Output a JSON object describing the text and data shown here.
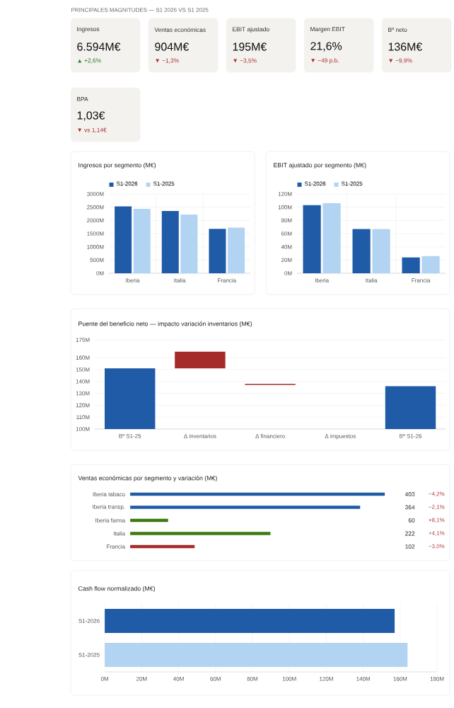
{
  "chart_data": [
    {
      "type": "other",
      "title": "PRINCIPALES MAGNITUDES — S1 2026 VS S1 2025",
      "annotations": [
        "Ingresos",
        "6.594M€",
        "▲ +2,6%",
        "Ventas económicas",
        "904M€",
        "▼ −1,3%",
        "EBIT ajustado",
        "195M€",
        "▼ −3,5%",
        "Margen EBIT",
        "21,6%",
        "▼ −49 p.b.",
        "Bº neto",
        "136M€",
        "▼ −9,9%",
        "BPA",
        "1,03€",
        "▼ vs 1,14€"
      ],
      "colors": [
        "#2e7d32",
        "#b03030",
        "#b03030",
        "#b03030",
        "#b03030",
        "#b03030"
      ]
    },
    {
      "type": "bar",
      "title": "Ingresos por segmento (M€)",
      "categories": [
        "Iberia",
        "Italia",
        "Francia"
      ],
      "series": [
        {
          "name": "S1-2026",
          "color": "#1f5ba6",
          "values": [
            2530,
            2360,
            1680
          ]
        },
        {
          "name": "S1-2025",
          "color": "#b3d3f2",
          "values": [
            2440,
            2220,
            1730
          ]
        }
      ],
      "ylim": [
        0,
        3000
      ],
      "yticks": [
        {
          "value": 0,
          "label": "0M"
        },
        {
          "value": 500,
          "label": "500M"
        },
        {
          "value": 1000,
          "label": "1000M"
        },
        {
          "value": 1500,
          "label": "1500M"
        },
        {
          "value": 2000,
          "label": "2000M"
        },
        {
          "value": 2500,
          "label": "2500M"
        },
        {
          "value": 3000,
          "label": "3000M"
        }
      ],
      "grid": true,
      "legend": "top left"
    },
    {
      "type": "bar",
      "title": "EBIT ajustado por segmento (M€)",
      "categories": [
        "Iberia",
        "Italia",
        "Francia"
      ],
      "series": [
        {
          "name": "S1-2026",
          "color": "#1f5ba6",
          "values": [
            103,
            67,
            24
          ]
        },
        {
          "name": "S1-2025",
          "color": "#b3d3f2",
          "values": [
            106,
            67,
            26
          ]
        }
      ],
      "ylim": [
        0,
        120
      ],
      "yticks": [
        {
          "value": 0,
          "label": "0M"
        },
        {
          "value": 20,
          "label": "20M"
        },
        {
          "value": 40,
          "label": "40M"
        },
        {
          "value": 60,
          "label": "60M"
        },
        {
          "value": 80,
          "label": "80M"
        },
        {
          "value": 100,
          "label": "100M"
        },
        {
          "value": 120,
          "label": "120M"
        }
      ],
      "grid": true,
      "legend": "top left"
    },
    {
      "type": "bar",
      "title": "Puente del beneficio neto — impacto variación inventarios (M€)",
      "categories": [
        "Bº S1-25",
        "Δ inventarios",
        "Δ financiero",
        "Δ impuestos",
        "Bº S1-26"
      ],
      "values": [
        151,
        14,
        1,
        null,
        136
      ],
      "base": [
        null,
        151,
        137,
        null,
        null
      ],
      "colors": [
        "#1f5ba6",
        "#a52a2a",
        "#a52a2a",
        "#a52a2a",
        "#1f5ba6"
      ],
      "ylim": [
        100,
        175
      ],
      "yticks": [
        {
          "value": 100,
          "label": "100M"
        },
        {
          "value": 110,
          "label": "110M"
        },
        {
          "value": 120,
          "label": "120M"
        },
        {
          "value": 130,
          "label": "130M"
        },
        {
          "value": 140,
          "label": "140M"
        },
        {
          "value": 150,
          "label": "150M"
        },
        {
          "value": 160,
          "label": "160M"
        },
        {
          "value": 175,
          "label": "175M"
        }
      ],
      "grid": "y"
    },
    {
      "type": "bar",
      "orientation": "horizontal",
      "title": "Ventas económicas por segmento y variación (M€)",
      "categories": [
        "Iberia tabaco",
        "Iberia transp.",
        "Iberia farma",
        "Italia",
        "Francia"
      ],
      "values": [
        403,
        364,
        60,
        222,
        102
      ],
      "colors": [
        "#1f5ba6",
        "#1f5ba6",
        "#3d7a10",
        "#3d7a10",
        "#a52a2a"
      ],
      "data_labels": true,
      "tick_labels": "y",
      "annotations": [
        "−4,2%",
        "−2,1%",
        "+8,1%",
        "+4,1%",
        "−3,0%"
      ]
    },
    {
      "type": "bar",
      "orientation": "horizontal",
      "title": "Cash flow normalizado (M€)",
      "categories": [
        "S1-2026",
        "S1-2025"
      ],
      "values": [
        157,
        164
      ],
      "colors": [
        "#1f5ba6",
        "#b3d3f2"
      ],
      "xlim": [
        0,
        180
      ],
      "xticks": [
        {
          "value": 0,
          "label": "0M"
        },
        {
          "value": 20,
          "label": "20M"
        },
        {
          "value": 40,
          "label": "40M"
        },
        {
          "value": 60,
          "label": "60M"
        },
        {
          "value": 80,
          "label": "80M"
        },
        {
          "value": 100,
          "label": "100M"
        },
        {
          "value": 120,
          "label": "120M"
        },
        {
          "value": 140,
          "label": "140M"
        },
        {
          "value": 160,
          "label": "160M"
        },
        {
          "value": 180,
          "label": "180M"
        }
      ],
      "grid": "x"
    }
  ]
}
